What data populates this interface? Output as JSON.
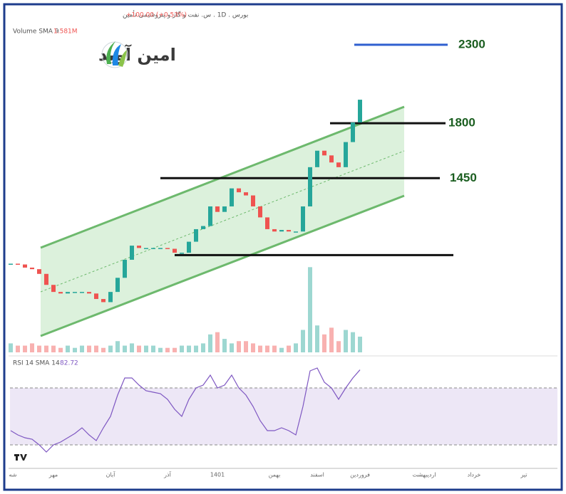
{
  "header": {
    "symbol": "بورس . 1D . س. نفت و گاز و پتروشیمی تأمین",
    "change": "+100.00 (+0.53%)",
    "volume_legend": "Volume SMA 9",
    "volume_sma": "1.581M",
    "rsi_legend": "RSI 14 SMA 14"
  },
  "logo": {
    "text": "امین آوید"
  },
  "chart_data": {
    "type": "candlestick",
    "categories": [
      "شه",
      null,
      null,
      null,
      null,
      null,
      "مهر",
      null,
      null,
      null,
      null,
      null,
      null,
      null,
      "آبان",
      null,
      null,
      null,
      null,
      null,
      null,
      null,
      "آذر",
      null,
      null,
      null,
      null,
      null,
      null,
      "1401",
      null,
      null,
      null,
      null,
      null,
      null,
      null,
      "بهمن",
      null,
      null,
      null,
      null,
      null,
      "اسفند",
      null,
      null,
      null,
      null,
      null,
      "فروردین",
      null,
      null,
      null,
      null,
      null,
      null,
      null,
      null,
      "اردیبهشت",
      null,
      null,
      null,
      null,
      null,
      null,
      "خرداد",
      null,
      null,
      null,
      null,
      null,
      null,
      "تیر",
      null,
      null,
      null,
      null
    ],
    "open": [
      900,
      905,
      900,
      880,
      870,
      840,
      770,
      725,
      715,
      725,
      725,
      725,
      715,
      680,
      660,
      725,
      815,
      930,
      1020,
      1005,
      1005,
      1005,
      1005,
      1000,
      975,
      975,
      1045,
      1125,
      1145,
      1270,
      1235,
      1270,
      1385,
      1360,
      1340,
      1270,
      1200,
      1125,
      1110,
      1120,
      1110,
      1110,
      1270,
      1520,
      1625,
      1595,
      1550,
      1520,
      1680,
      1805,
      null,
      null,
      null,
      null,
      null,
      null,
      null,
      null,
      null,
      null,
      null,
      null,
      null,
      null,
      null,
      null,
      null,
      null,
      null,
      null,
      null,
      null,
      null,
      null,
      null,
      null,
      null
    ],
    "close": [
      905,
      900,
      880,
      870,
      840,
      770,
      725,
      715,
      725,
      725,
      725,
      715,
      680,
      660,
      725,
      815,
      930,
      1020,
      1005,
      1005,
      1005,
      1005,
      1000,
      975,
      975,
      1045,
      1125,
      1145,
      1270,
      1235,
      1270,
      1385,
      1360,
      1340,
      1270,
      1200,
      1125,
      1110,
      1120,
      1110,
      1110,
      1270,
      1520,
      1625,
      1595,
      1550,
      1520,
      1680,
      1805,
      1950,
      null,
      null,
      null,
      null,
      null,
      null,
      null,
      null,
      null,
      null,
      null,
      null,
      null,
      null,
      null,
      null,
      null,
      null,
      null,
      null,
      null,
      null,
      null,
      null,
      null,
      null,
      null
    ],
    "ylim": [
      340,
      2540
    ],
    "up_color": "#26a69a",
    "down_color": "#ef5350",
    "levels": [
      2300,
      1800,
      1450
    ],
    "level_colors": [
      "#2f5fd0",
      "#111111",
      "#111111"
    ],
    "support_line": 960,
    "volume": {
      "values": [
        4,
        3,
        3,
        4,
        3,
        3,
        3,
        2,
        3,
        2,
        3,
        3,
        3,
        2,
        3,
        5,
        3,
        4,
        3,
        3,
        3,
        2,
        2,
        2,
        3,
        3,
        3,
        4,
        8,
        9,
        6,
        4,
        5,
        5,
        4,
        3,
        3,
        3,
        2,
        3,
        4,
        10,
        38,
        12,
        8,
        11,
        5,
        10,
        9,
        7,
        null,
        null,
        null,
        null,
        null,
        null,
        null,
        null,
        null,
        null,
        null,
        null,
        null,
        null,
        null,
        null,
        null,
        null,
        null,
        null,
        null,
        null,
        null,
        null,
        null,
        null,
        null
      ],
      "ylim": [
        0,
        40
      ]
    },
    "rsi": {
      "values": [
        40,
        37,
        35,
        34,
        30,
        25,
        30,
        32,
        35,
        38,
        42,
        37,
        33,
        42,
        50,
        65,
        77,
        77,
        72,
        68,
        67,
        66,
        62,
        55,
        50,
        62,
        70,
        72,
        79,
        70,
        72,
        79,
        70,
        65,
        57,
        47,
        40,
        40,
        42,
        40,
        37,
        57,
        82,
        84,
        74,
        70,
        62,
        70,
        77,
        82.72,
        null,
        null,
        null,
        null,
        null,
        null,
        null,
        null,
        null,
        null,
        null,
        null,
        null,
        null,
        null,
        null,
        null,
        null,
        null,
        null,
        null,
        null,
        null,
        null,
        null,
        null,
        null
      ],
      "ylim": [
        15,
        85
      ],
      "bands": [
        30,
        70
      ],
      "color": "#7e57c2",
      "band_fill": "#ede7f6"
    }
  }
}
